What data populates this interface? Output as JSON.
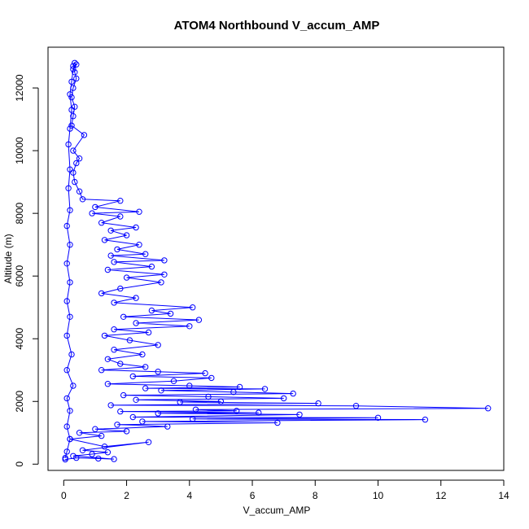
{
  "chart_data": {
    "type": "scatter",
    "title": "ATOM4 Northbound V_accum_AMP",
    "xlabel": "V_accum_AMP",
    "ylabel": "Altitude (m)",
    "xlim": [
      -0.5,
      14
    ],
    "ylim": [
      -200,
      13300
    ],
    "xticks": [
      0,
      2,
      4,
      6,
      8,
      10,
      12,
      14
    ],
    "yticks": [
      0,
      2000,
      4000,
      6000,
      8000,
      10000,
      12000
    ],
    "grid": false,
    "legend": "none",
    "series": [
      {
        "style": "points-and-lines",
        "marker": "open-circle",
        "color": "#0000ff",
        "points": [
          [
            0.05,
            150
          ],
          [
            0.4,
            200
          ],
          [
            1.1,
            180
          ],
          [
            1.6,
            160
          ],
          [
            0.3,
            260
          ],
          [
            0.9,
            320
          ],
          [
            1.4,
            380
          ],
          [
            0.6,
            440
          ],
          [
            2.7,
            700
          ],
          [
            1.3,
            560
          ],
          [
            0.2,
            800
          ],
          [
            1.2,
            900
          ],
          [
            0.5,
            1000
          ],
          [
            2.0,
            1050
          ],
          [
            1.0,
            1120
          ],
          [
            3.3,
            1200
          ],
          [
            1.7,
            1260
          ],
          [
            6.8,
            1320
          ],
          [
            2.5,
            1360
          ],
          [
            11.5,
            1420
          ],
          [
            4.1,
            1440
          ],
          [
            10.0,
            1480
          ],
          [
            2.2,
            1500
          ],
          [
            7.5,
            1580
          ],
          [
            3.0,
            1620
          ],
          [
            6.2,
            1640
          ],
          [
            1.8,
            1680
          ],
          [
            5.5,
            1700
          ],
          [
            4.2,
            1740
          ],
          [
            13.5,
            1780
          ],
          [
            9.3,
            1860
          ],
          [
            1.5,
            1880
          ],
          [
            8.1,
            1940
          ],
          [
            3.7,
            1980
          ],
          [
            5.0,
            2000
          ],
          [
            2.3,
            2050
          ],
          [
            7.0,
            2100
          ],
          [
            4.6,
            2150
          ],
          [
            1.9,
            2200
          ],
          [
            7.3,
            2250
          ],
          [
            5.4,
            2300
          ],
          [
            3.1,
            2350
          ],
          [
            6.4,
            2400
          ],
          [
            2.6,
            2420
          ],
          [
            5.6,
            2460
          ],
          [
            4.0,
            2500
          ],
          [
            1.4,
            2560
          ],
          [
            3.5,
            2650
          ],
          [
            4.7,
            2750
          ],
          [
            2.2,
            2800
          ],
          [
            4.5,
            2900
          ],
          [
            3.0,
            2950
          ],
          [
            1.2,
            3000
          ],
          [
            2.6,
            3100
          ],
          [
            1.8,
            3200
          ],
          [
            1.4,
            3350
          ],
          [
            2.5,
            3500
          ],
          [
            1.6,
            3650
          ],
          [
            3.0,
            3800
          ],
          [
            2.1,
            3950
          ],
          [
            1.3,
            4100
          ],
          [
            2.7,
            4200
          ],
          [
            1.6,
            4300
          ],
          [
            4.0,
            4400
          ],
          [
            2.3,
            4500
          ],
          [
            4.3,
            4600
          ],
          [
            1.9,
            4700
          ],
          [
            3.4,
            4800
          ],
          [
            2.8,
            4900
          ],
          [
            4.1,
            5000
          ],
          [
            1.6,
            5150
          ],
          [
            2.3,
            5300
          ],
          [
            1.2,
            5450
          ],
          [
            1.8,
            5600
          ],
          [
            3.1,
            5800
          ],
          [
            2.0,
            5950
          ],
          [
            3.2,
            6050
          ],
          [
            1.4,
            6200
          ],
          [
            2.8,
            6300
          ],
          [
            1.6,
            6450
          ],
          [
            3.2,
            6500
          ],
          [
            1.5,
            6650
          ],
          [
            2.6,
            6700
          ],
          [
            1.7,
            6850
          ],
          [
            2.4,
            7000
          ],
          [
            1.3,
            7150
          ],
          [
            2.0,
            7300
          ],
          [
            1.5,
            7450
          ],
          [
            2.3,
            7550
          ],
          [
            1.2,
            7700
          ],
          [
            1.8,
            7900
          ],
          [
            0.9,
            8000
          ],
          [
            2.4,
            8050
          ],
          [
            1.0,
            8200
          ],
          [
            1.8,
            8400
          ],
          [
            0.6,
            8450
          ],
          [
            0.5,
            8700
          ],
          [
            0.35,
            9000
          ],
          [
            0.3,
            9300
          ],
          [
            0.4,
            9600
          ],
          [
            0.5,
            9750
          ],
          [
            0.3,
            10000
          ],
          [
            0.65,
            10500
          ],
          [
            0.25,
            10800
          ],
          [
            0.3,
            11100
          ],
          [
            0.35,
            11400
          ],
          [
            0.25,
            11700
          ],
          [
            0.3,
            12000
          ],
          [
            0.4,
            12300
          ],
          [
            0.35,
            12500
          ],
          [
            0.3,
            12700
          ],
          [
            0.35,
            12800
          ],
          [
            0.4,
            12750
          ],
          [
            0.3,
            12600
          ],
          [
            0.25,
            12200
          ],
          [
            0.2,
            11800
          ],
          [
            0.25,
            11300
          ],
          [
            0.2,
            10700
          ],
          [
            0.15,
            10200
          ],
          [
            0.2,
            9400
          ],
          [
            0.15,
            8800
          ],
          [
            0.2,
            8100
          ],
          [
            0.1,
            7600
          ],
          [
            0.2,
            7000
          ],
          [
            0.1,
            6400
          ],
          [
            0.2,
            5800
          ],
          [
            0.1,
            5200
          ],
          [
            0.2,
            4700
          ],
          [
            0.1,
            4100
          ],
          [
            0.25,
            3500
          ],
          [
            0.1,
            3000
          ],
          [
            0.3,
            2500
          ],
          [
            0.1,
            2100
          ],
          [
            0.2,
            1700
          ],
          [
            0.1,
            1200
          ],
          [
            0.2,
            800
          ],
          [
            0.1,
            400
          ],
          [
            0.05,
            200
          ]
        ]
      }
    ]
  }
}
